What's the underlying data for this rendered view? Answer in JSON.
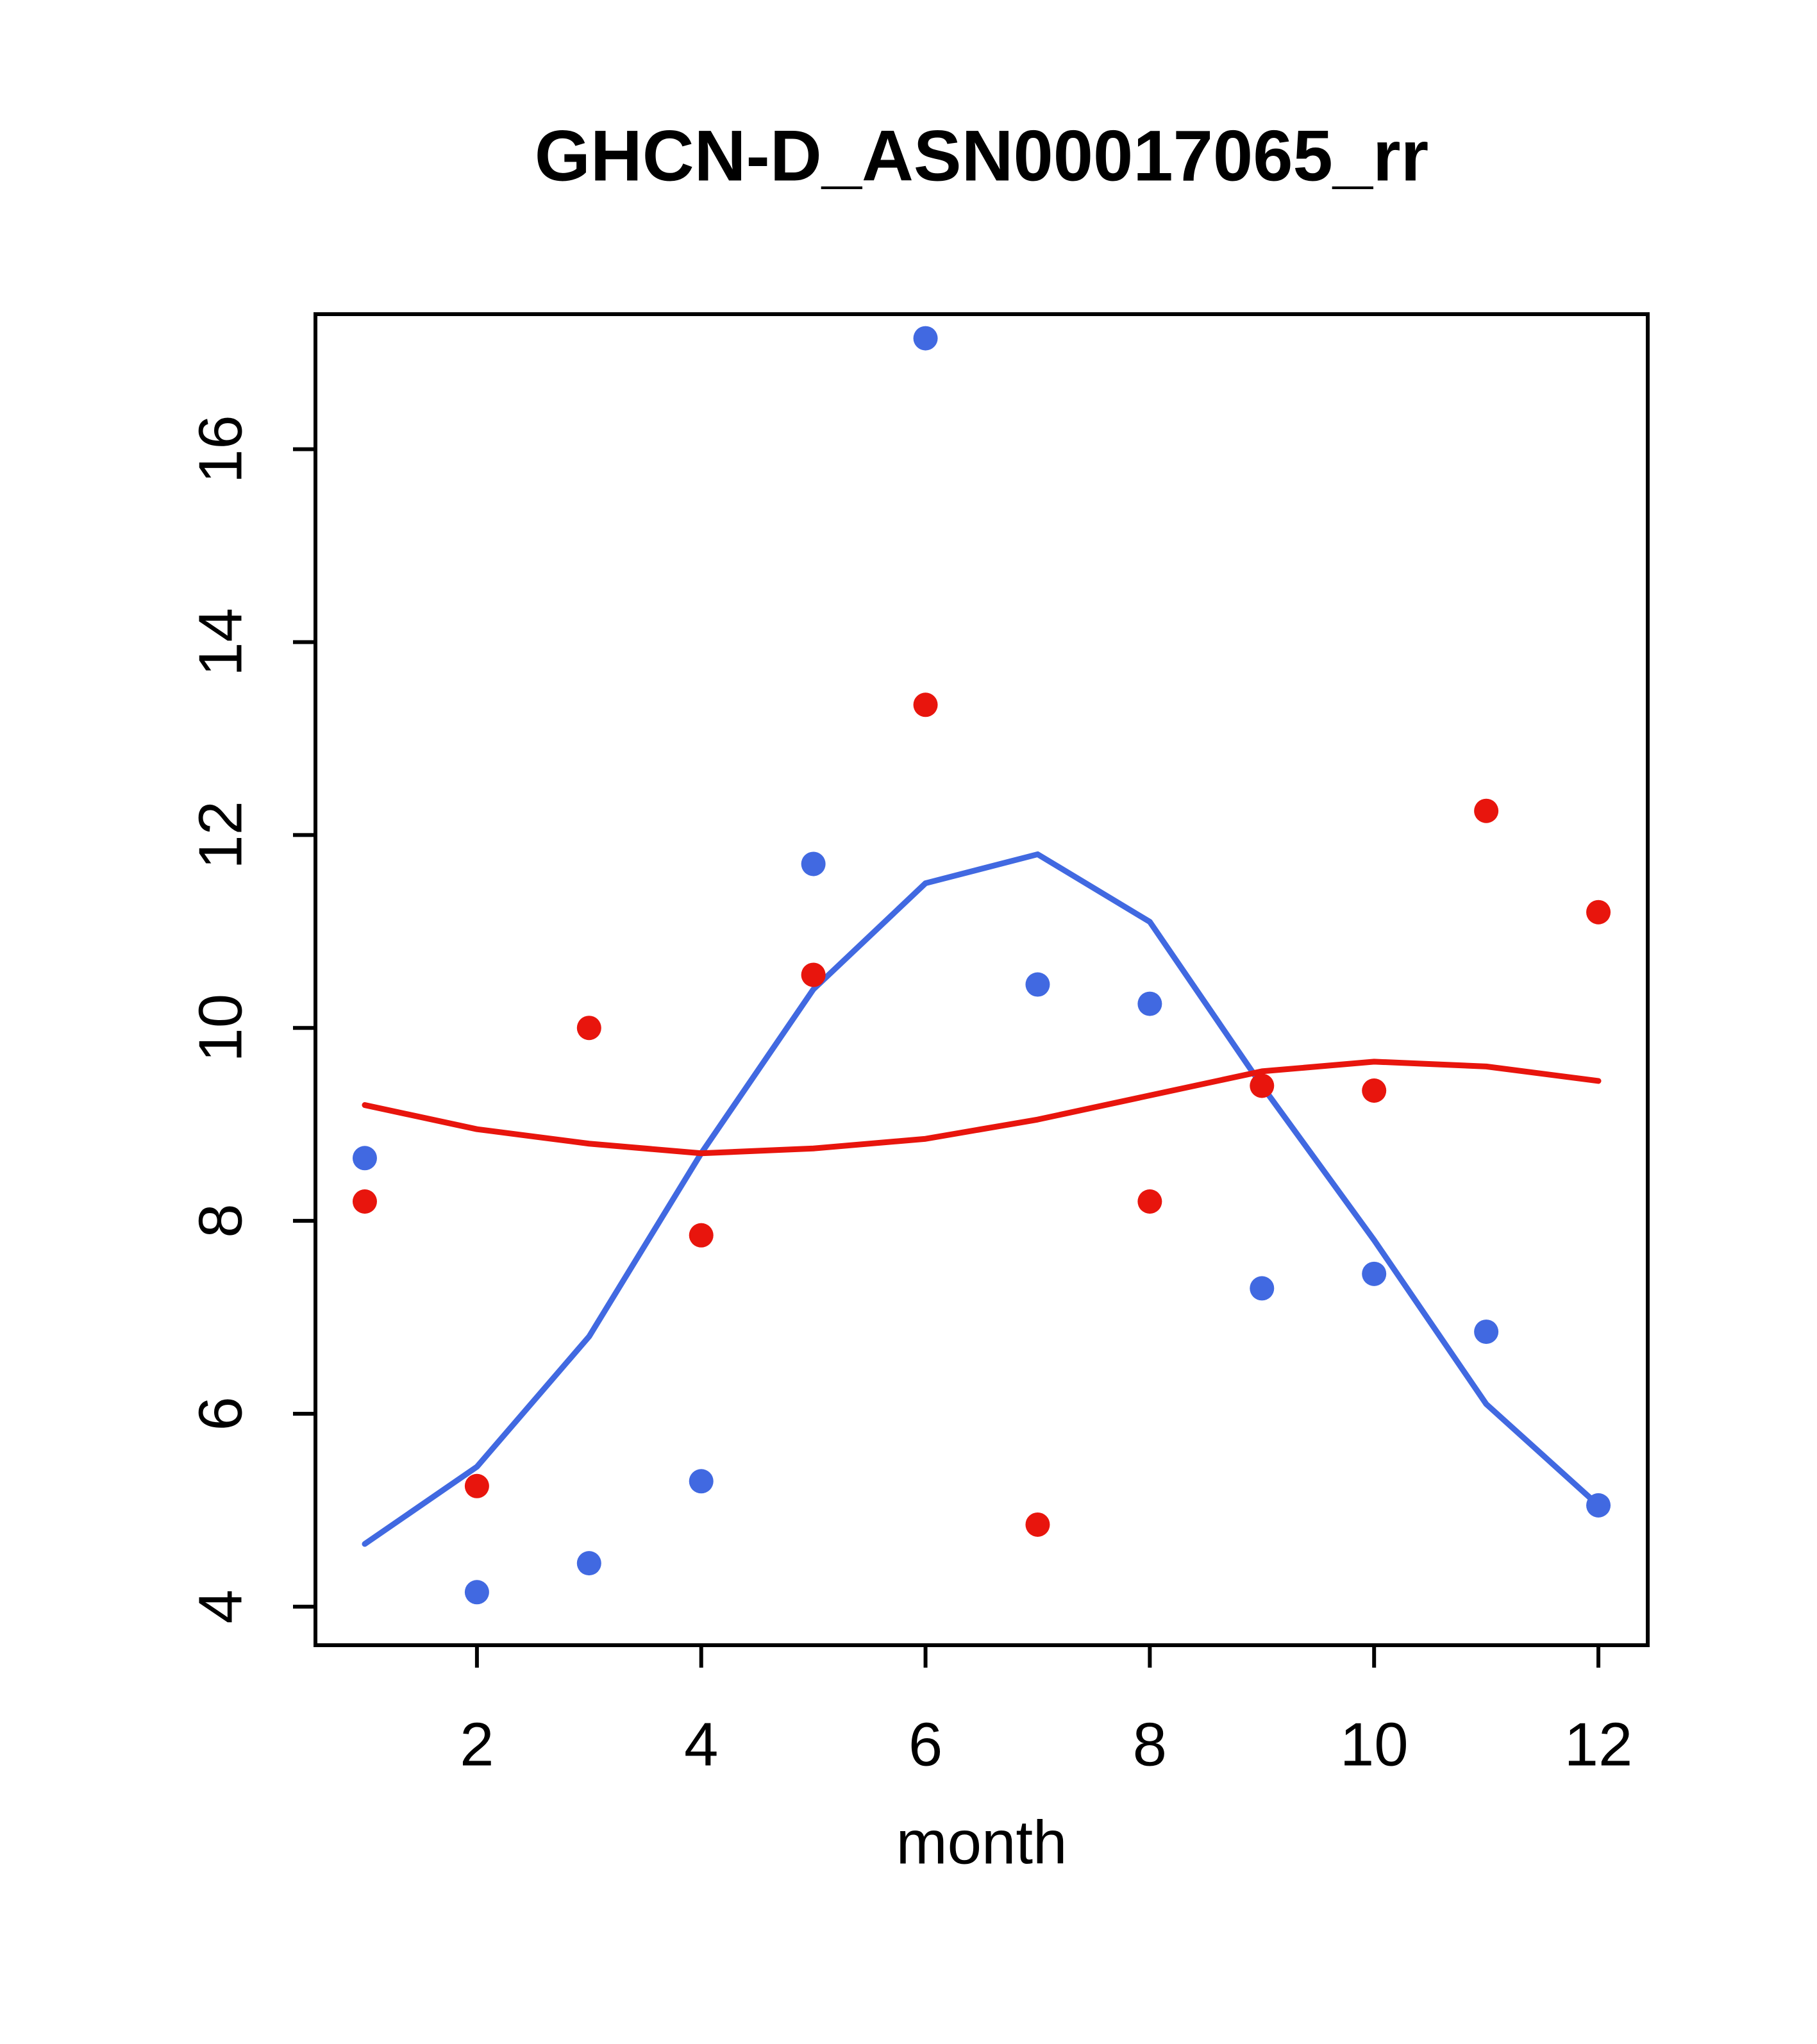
{
  "chart_data": {
    "type": "scatter",
    "title": "GHCN-D_ASN00017065_rr",
    "xlabel": "month",
    "ylabel": "",
    "xlim": [
      0.56,
      12.44
    ],
    "ylim": [
      3.6,
      17.4
    ],
    "xticks": [
      2,
      4,
      6,
      8,
      10,
      12
    ],
    "yticks": [
      4,
      6,
      8,
      10,
      12,
      14,
      16
    ],
    "grid": false,
    "legend_position": "none",
    "x": [
      1,
      2,
      3,
      4,
      5,
      6,
      7,
      8,
      9,
      10,
      11,
      12
    ],
    "colors": {
      "blue_series": "#4169e1",
      "red_series": "#e8150d",
      "axis": "#000000",
      "background": "#ffffff"
    },
    "series": [
      {
        "name": "blue-points",
        "kind": "points",
        "color": "#4169e1",
        "values": [
          8.65,
          4.15,
          4.45,
          5.3,
          11.7,
          17.15,
          10.45,
          10.25,
          7.3,
          7.45,
          6.85,
          5.05
        ]
      },
      {
        "name": "red-points",
        "kind": "points",
        "color": "#e8150d",
        "values": [
          8.2,
          5.25,
          10.0,
          7.85,
          10.55,
          13.35,
          4.85,
          8.2,
          9.4,
          9.35,
          12.25,
          11.2
        ]
      },
      {
        "name": "blue-smooth-line",
        "kind": "line",
        "color": "#4169e1",
        "values": [
          4.65,
          5.45,
          6.8,
          8.7,
          10.4,
          11.5,
          11.8,
          11.1,
          9.4,
          7.8,
          6.1,
          5.05
        ]
      },
      {
        "name": "red-smooth-line",
        "kind": "line",
        "color": "#e8150d",
        "values": [
          9.2,
          8.95,
          8.8,
          8.7,
          8.75,
          8.85,
          9.05,
          9.3,
          9.55,
          9.65,
          9.6,
          9.45
        ]
      }
    ]
  }
}
